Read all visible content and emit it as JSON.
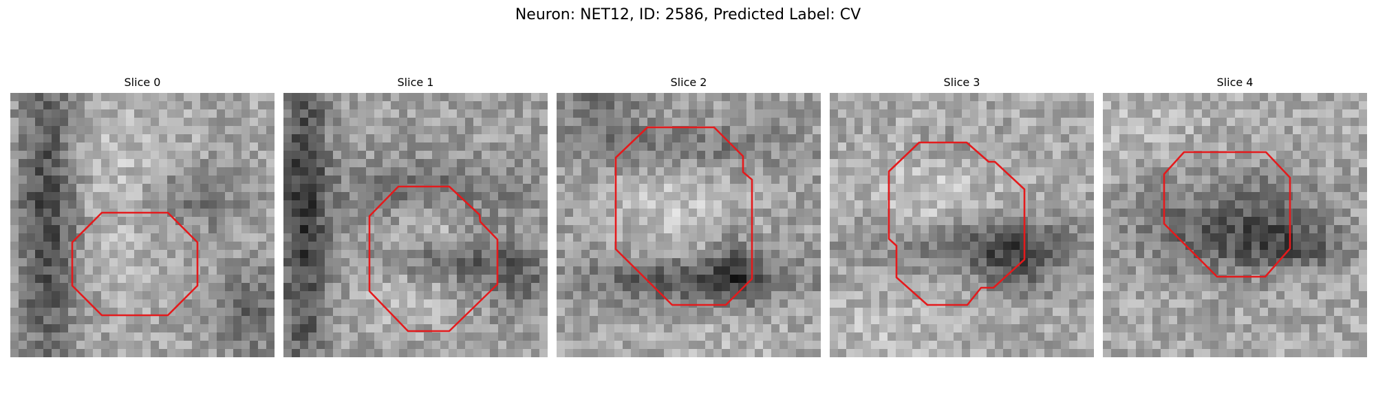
{
  "title": "Neuron: NET12, ID: 2586, Predicted Label: CV",
  "panels": [
    {
      "title": "Slice 0"
    },
    {
      "title": "Slice 1"
    },
    {
      "title": "Slice 2"
    },
    {
      "title": "Slice 3"
    },
    {
      "title": "Slice 4"
    }
  ],
  "colors": {
    "background": "#ffffff",
    "contour": "#e41a1c"
  }
}
